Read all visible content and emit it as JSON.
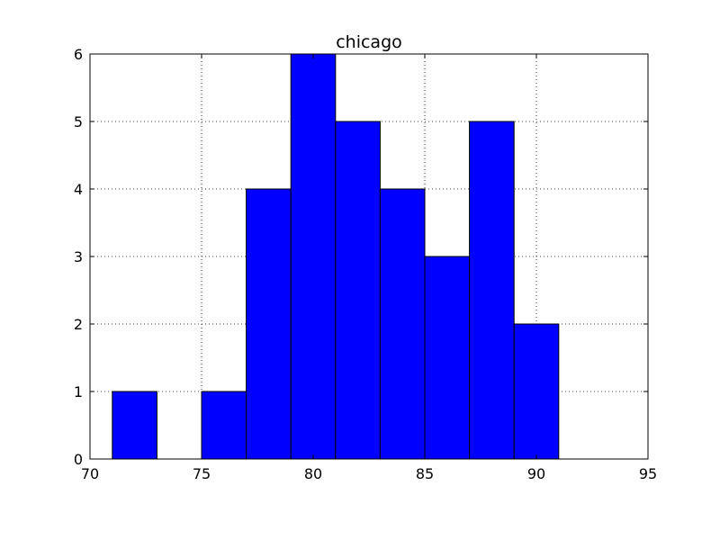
{
  "chart_data": {
    "type": "bar",
    "title": "chicago",
    "xlabel": "",
    "ylabel": "",
    "xlim": [
      70,
      95
    ],
    "ylim": [
      0,
      6
    ],
    "x_ticks": [
      "70",
      "75",
      "80",
      "85",
      "90",
      "95"
    ],
    "y_ticks": [
      "0",
      "1",
      "2",
      "3",
      "4",
      "5",
      "6"
    ],
    "bins": [
      {
        "x0": 71,
        "x1": 73,
        "count": 1
      },
      {
        "x0": 73,
        "x1": 75,
        "count": 0
      },
      {
        "x0": 75,
        "x1": 77,
        "count": 1
      },
      {
        "x0": 77,
        "x1": 79,
        "count": 4
      },
      {
        "x0": 79,
        "x1": 81,
        "count": 6
      },
      {
        "x0": 81,
        "x1": 83,
        "count": 5
      },
      {
        "x0": 83,
        "x1": 85,
        "count": 4
      },
      {
        "x0": 85,
        "x1": 87,
        "count": 3
      },
      {
        "x0": 87,
        "x1": 89,
        "count": 5
      },
      {
        "x0": 89,
        "x1": 91,
        "count": 2
      }
    ],
    "grid": true,
    "bar_color": "#0000ff",
    "edge_color": "#000000"
  }
}
